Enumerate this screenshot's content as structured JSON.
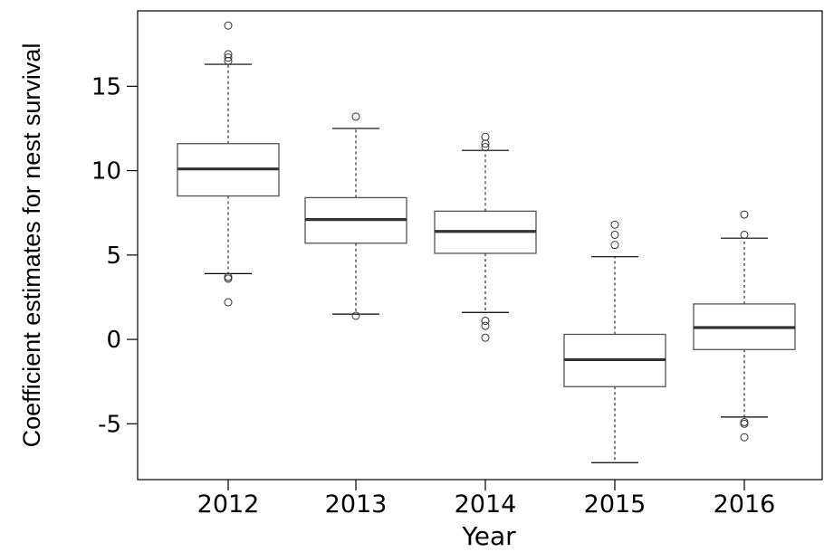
{
  "chart_data": {
    "type": "boxplot",
    "xlabel": "Year",
    "ylabel": "Coefficient estimates for nest survival",
    "categories": [
      "2012",
      "2013",
      "2014",
      "2015",
      "2016"
    ],
    "ylim": [
      -8.2,
      19.2
    ],
    "yticks": [
      -5,
      0,
      5,
      10,
      15
    ],
    "grid": false,
    "boxes": [
      {
        "category": "2012",
        "whisker_low": 3.9,
        "q1": 8.5,
        "median": 10.1,
        "q3": 11.6,
        "whisker_high": 16.3,
        "outliers": [
          2.2,
          3.6,
          3.7,
          16.5,
          16.7,
          16.9,
          18.6
        ]
      },
      {
        "category": "2013",
        "whisker_low": 1.5,
        "q1": 5.7,
        "median": 7.1,
        "q3": 8.4,
        "whisker_high": 12.5,
        "outliers": [
          1.4,
          13.2
        ]
      },
      {
        "category": "2014",
        "whisker_low": 1.6,
        "q1": 5.1,
        "median": 6.4,
        "q3": 7.6,
        "whisker_high": 11.2,
        "outliers": [
          0.1,
          0.8,
          1.1,
          11.4,
          11.6,
          12.0
        ]
      },
      {
        "category": "2015",
        "whisker_low": -7.3,
        "q1": -2.8,
        "median": -1.2,
        "q3": 0.3,
        "whisker_high": 4.9,
        "outliers": [
          5.6,
          6.2,
          6.8
        ]
      },
      {
        "category": "2016",
        "whisker_low": -4.6,
        "q1": -0.6,
        "median": 0.7,
        "q3": 2.1,
        "whisker_high": 6.0,
        "outliers": [
          -4.9,
          -5.0,
          -5.8,
          6.2,
          7.4
        ]
      }
    ]
  }
}
